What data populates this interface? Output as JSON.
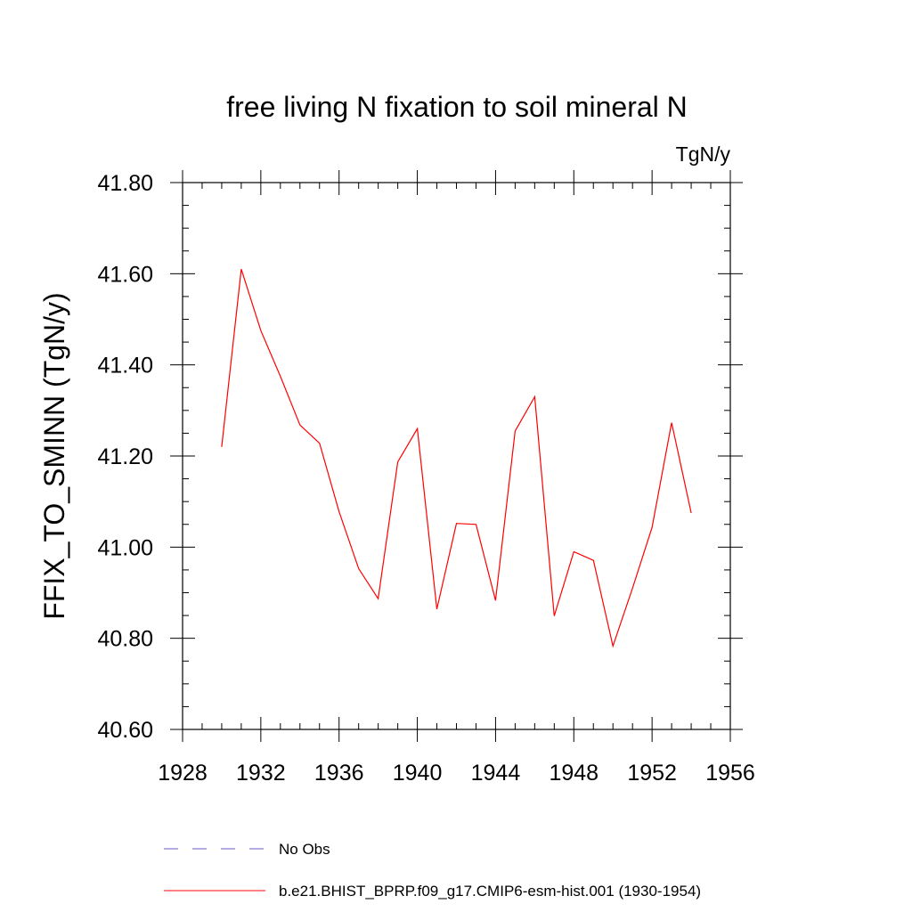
{
  "chart_data": {
    "type": "line",
    "title": "free living N fixation to soil mineral N",
    "units": "TgN/y",
    "ylabel": "FFIX_TO_SMINN  (TgN/y)",
    "xlabel": "",
    "xlim": [
      1928,
      1956
    ],
    "ylim": [
      40.6,
      41.8
    ],
    "xticks": [
      1928,
      1932,
      1936,
      1940,
      1944,
      1948,
      1952,
      1956
    ],
    "yticks": [
      40.6,
      40.8,
      41.0,
      41.2,
      41.4,
      41.6,
      41.8
    ],
    "ytick_labels": [
      "40.60",
      "40.80",
      "41.00",
      "41.20",
      "41.40",
      "41.60",
      "41.80"
    ],
    "series": [
      {
        "name": "b.e21.BHIST_BPRP.f09_g17.CMIP6-esm-hist.001 (1930-1954)",
        "color": "#ff0000",
        "style": "solid",
        "x": [
          1930,
          1931,
          1932,
          1933,
          1934,
          1935,
          1936,
          1937,
          1938,
          1939,
          1940,
          1941,
          1942,
          1943,
          1944,
          1945,
          1946,
          1947,
          1948,
          1949,
          1950,
          1951,
          1952,
          1953,
          1954
        ],
        "values": [
          41.22,
          41.61,
          41.475,
          41.375,
          41.268,
          41.228,
          41.078,
          40.953,
          40.887,
          41.187,
          41.26,
          40.864,
          41.052,
          41.05,
          40.883,
          41.255,
          41.33,
          40.849,
          40.99,
          40.971,
          40.783,
          40.91,
          41.043,
          41.273,
          41.075
        ]
      }
    ],
    "legend": [
      {
        "label": "No Obs",
        "style": "dashed",
        "color": "#6a5acd"
      },
      {
        "label": "b.e21.BHIST_BPRP.f09_g17.CMIP6-esm-hist.001 (1930-1954)",
        "style": "solid",
        "color": "#ff0000"
      }
    ],
    "legend_position": "bottom",
    "grid": false
  }
}
